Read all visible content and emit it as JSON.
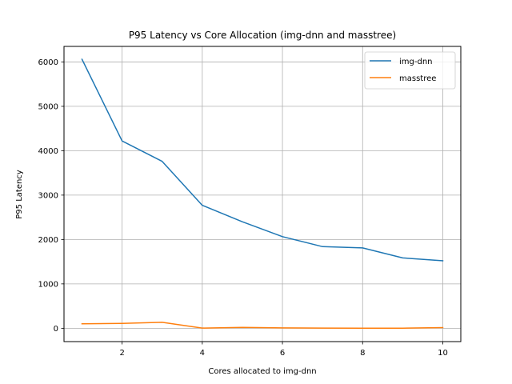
{
  "chart_data": {
    "type": "line",
    "title": "P95 Latency vs Core Allocation (img-dnn and masstree)",
    "xlabel": "Cores allocated to img-dnn",
    "ylabel": "P95 Latency",
    "xlim": [
      0.55,
      10.45
    ],
    "ylim": [
      -300,
      6350
    ],
    "xticks": [
      2,
      4,
      6,
      8,
      10
    ],
    "yticks": [
      0,
      1000,
      2000,
      3000,
      4000,
      5000,
      6000
    ],
    "grid": true,
    "legend_position": "top-right",
    "series": [
      {
        "name": "img-dnn",
        "color": "#1f77b4",
        "x": [
          1,
          2,
          3,
          4,
          5,
          6,
          7,
          8,
          9,
          10
        ],
        "values": [
          6060,
          4220,
          3760,
          2770,
          2400,
          2065,
          1840,
          1810,
          1585,
          1520
        ]
      },
      {
        "name": "masstree",
        "color": "#ff7f0e",
        "x": [
          1,
          2,
          3,
          4,
          5,
          6,
          7,
          8,
          9,
          10
        ],
        "values": [
          100,
          110,
          135,
          5,
          20,
          8,
          5,
          3,
          3,
          15
        ]
      }
    ]
  }
}
